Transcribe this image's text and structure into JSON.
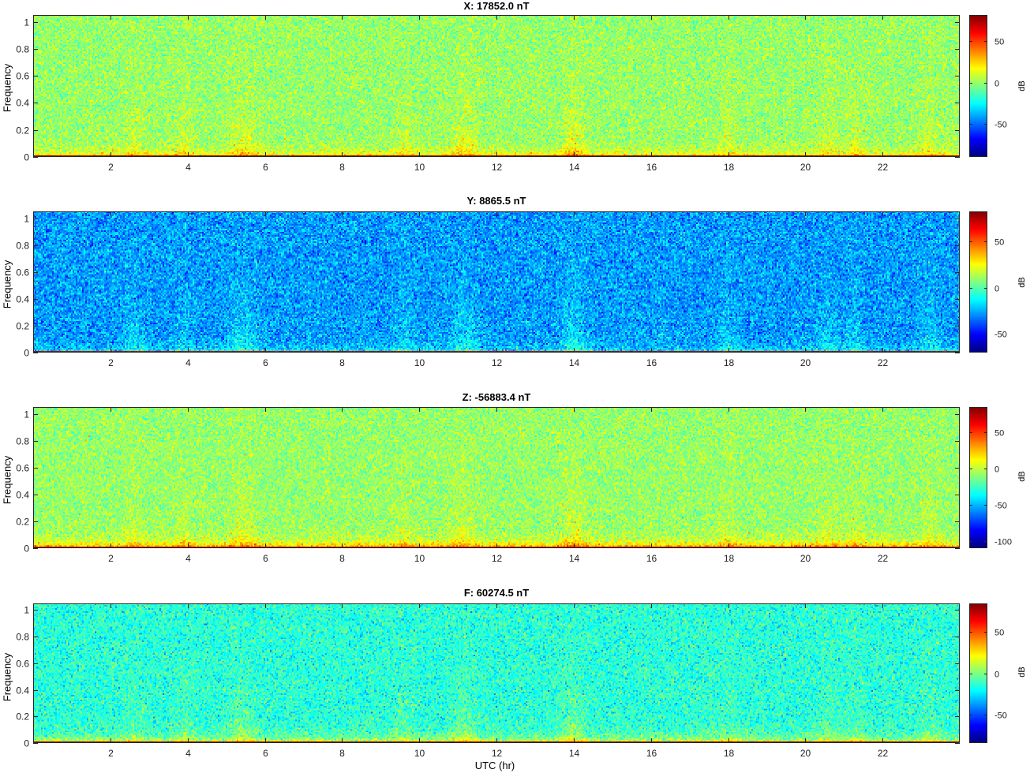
{
  "chart_data": [
    {
      "type": "heatmap",
      "title": "X: 17852.0 nT",
      "ylabel": "Frequency",
      "xlabel": "",
      "xlim": [
        0,
        24
      ],
      "ylim": [
        0,
        1.05
      ],
      "xticks": [
        2,
        4,
        6,
        8,
        10,
        12,
        14,
        16,
        18,
        20,
        22
      ],
      "yticks": [
        0,
        0.2,
        0.4,
        0.6,
        0.8,
        1
      ],
      "colorbar": {
        "label": "dB",
        "range": [
          -90,
          82
        ],
        "ticks": [
          -50,
          0,
          50
        ]
      },
      "colormap": "jet",
      "field": {
        "background_db": 0,
        "noise_db": 8,
        "low_freq_band_db": 25,
        "dc_line_db": 80
      }
    },
    {
      "type": "heatmap",
      "title": "Y: 8865.5 nT",
      "ylabel": "Frequency",
      "xlabel": "",
      "xlim": [
        0,
        24
      ],
      "ylim": [
        0,
        1.05
      ],
      "xticks": [
        2,
        4,
        6,
        8,
        10,
        12,
        14,
        16,
        18,
        20,
        22
      ],
      "yticks": [
        0,
        0.2,
        0.4,
        0.6,
        0.8,
        1
      ],
      "colorbar": {
        "label": "dB",
        "range": [
          -70,
          82
        ],
        "ticks": [
          -50,
          0,
          50
        ]
      },
      "colormap": "jet",
      "field": {
        "background_db": -28,
        "noise_db": 9,
        "low_freq_band_db": 15,
        "dc_line_db": 80
      }
    },
    {
      "type": "heatmap",
      "title": "Z: -56883.4 nT",
      "ylabel": "Frequency",
      "xlabel": "",
      "xlim": [
        0,
        24
      ],
      "ylim": [
        0,
        1.05
      ],
      "xticks": [
        2,
        4,
        6,
        8,
        10,
        12,
        14,
        16,
        18,
        20,
        22
      ],
      "yticks": [
        0,
        0.2,
        0.4,
        0.6,
        0.8,
        1
      ],
      "colorbar": {
        "label": "dB",
        "range": [
          -110,
          85
        ],
        "ticks": [
          -100,
          -50,
          0,
          50
        ]
      },
      "colormap": "jet",
      "field": {
        "background_db": -8,
        "noise_db": 9,
        "low_freq_band_db": 45,
        "dc_line_db": 80
      }
    },
    {
      "type": "heatmap",
      "title": "F: 60274.5 nT",
      "ylabel": "Frequency",
      "xlabel": "UTC (hr)",
      "xlim": [
        0,
        24
      ],
      "ylim": [
        0,
        1.05
      ],
      "xticks": [
        2,
        4,
        6,
        8,
        10,
        12,
        14,
        16,
        18,
        20,
        22
      ],
      "yticks": [
        0,
        0.2,
        0.4,
        0.6,
        0.8,
        1
      ],
      "colorbar": {
        "label": "dB",
        "range": [
          -85,
          85
        ],
        "ticks": [
          -50,
          0,
          50
        ]
      },
      "colormap": "jet",
      "field": {
        "background_db": -15,
        "noise_db": 9,
        "low_freq_band_db": 35,
        "dc_line_db": 80
      }
    }
  ],
  "colors": {
    "axis": "#262626",
    "background": "#ffffff"
  }
}
